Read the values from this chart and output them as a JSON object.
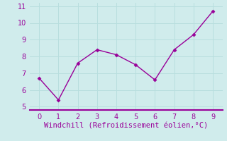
{
  "x": [
    0,
    1,
    2,
    3,
    4,
    5,
    6,
    7,
    8,
    9
  ],
  "y": [
    6.7,
    5.4,
    7.6,
    8.4,
    8.1,
    7.5,
    6.6,
    8.4,
    9.3,
    10.7
  ],
  "line_color": "#990099",
  "marker": "D",
  "marker_size": 2.5,
  "line_width": 1.0,
  "xlabel": "Windchill (Refroidissement éolien,°C)",
  "xlabel_fontsize": 7.5,
  "xlabel_color": "#990099",
  "xlim": [
    -0.5,
    9.5
  ],
  "ylim": [
    4.8,
    11.2
  ],
  "xticks": [
    0,
    1,
    2,
    3,
    4,
    5,
    6,
    7,
    8,
    9
  ],
  "yticks": [
    5,
    6,
    7,
    8,
    9,
    10,
    11
  ],
  "tick_fontsize": 7,
  "tick_color": "#990099",
  "grid_color": "#b8dede",
  "background_color": "#d0ecec",
  "border_color": "#990099",
  "border_width": 1.5
}
